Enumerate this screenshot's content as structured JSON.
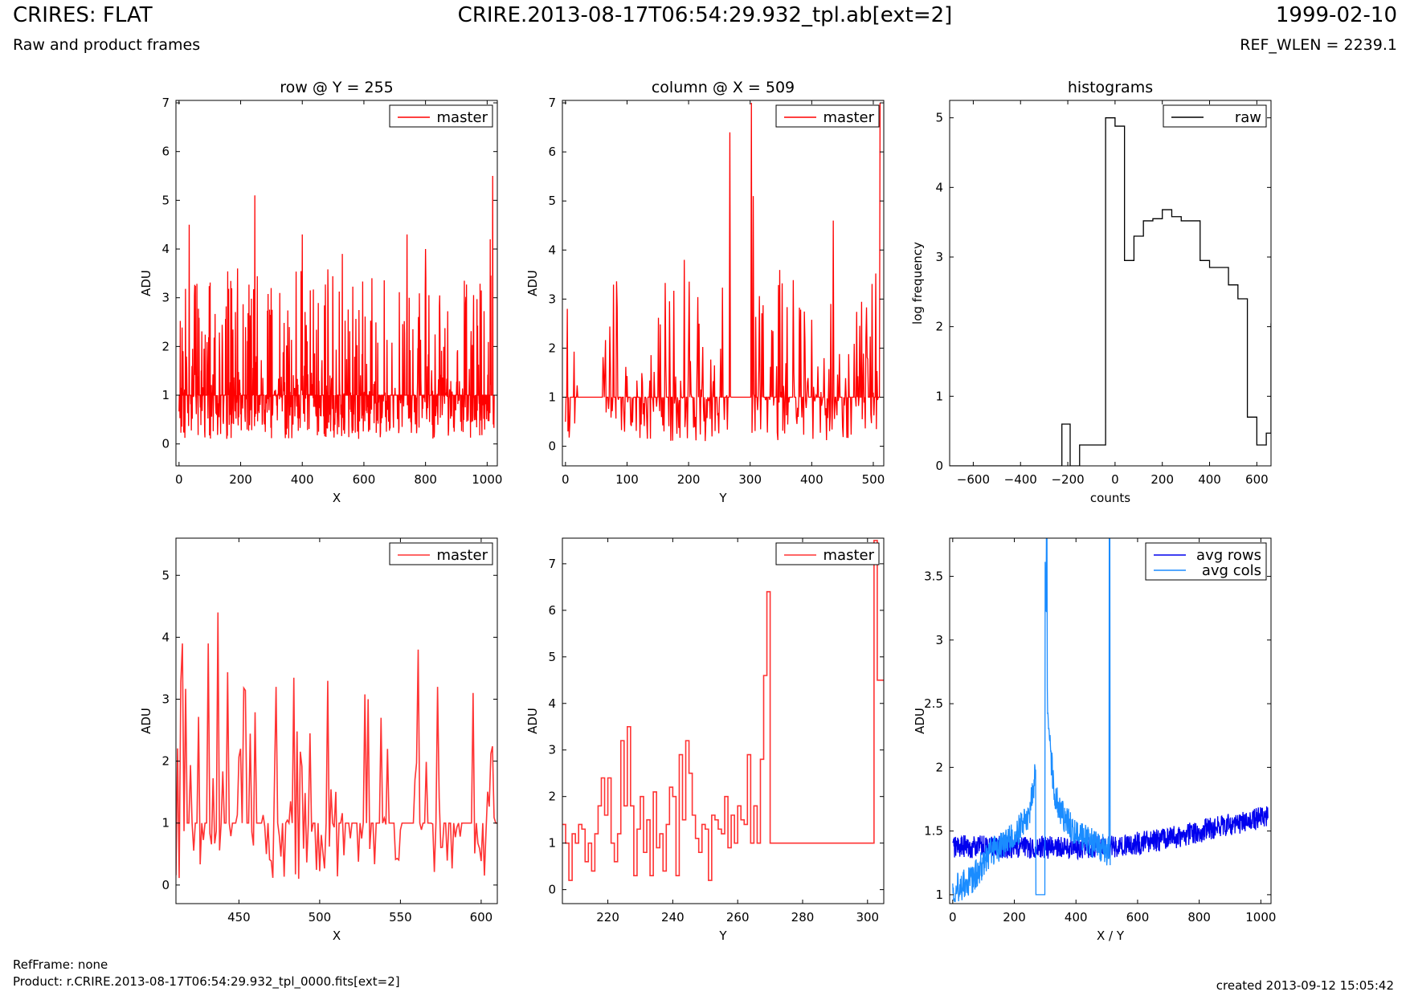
{
  "header": {
    "title": "CRIRES: FLAT",
    "file": "CRIRE.2013-08-17T06:54:29.932_tpl.ab[ext=2]",
    "date": "1999-02-10",
    "subtitle": "Raw and product frames",
    "ref_wlen": "REF_WLEN = 2239.1"
  },
  "footer": {
    "ref_frame": "RefFrame: none",
    "product": "Product: r.CRIRE.2013-08-17T06:54:29.932_tpl_0000.fits[ext=2]",
    "created": "created 2013-09-12 15:05:42"
  },
  "chart_data": [
    {
      "type": "line",
      "title": "row @ Y = 255",
      "xlabel": "X",
      "ylabel": "ADU",
      "xlim": [
        -10,
        1033
      ],
      "ylim": [
        -0.45,
        7.05
      ],
      "xticks": [
        0,
        200,
        400,
        600,
        800,
        1000
      ],
      "yticks": [
        0,
        1,
        2,
        3,
        4,
        5,
        6,
        7
      ],
      "legend": "top-right",
      "grid": false,
      "series": [
        {
          "name": "master",
          "color": "#ff0000",
          "x_range": [
            0,
            1023
          ],
          "baseline": 1.0,
          "min": 0.1,
          "max": 5.5,
          "peaks": [
            [
              33,
              4.5
            ],
            [
              190,
              3.6
            ],
            [
              246,
              5.1
            ],
            [
              400,
              4.3
            ],
            [
              530,
              3.9
            ],
            [
              740,
              4.3
            ],
            [
              800,
              4.0
            ],
            [
              1010,
              4.2
            ],
            [
              1018,
              5.5
            ]
          ]
        }
      ]
    },
    {
      "type": "line",
      "title": "column @ X = 509",
      "xlabel": "Y",
      "ylabel": "ADU",
      "xlim": [
        -5,
        517
      ],
      "ylim": [
        -0.4,
        7.05
      ],
      "xticks": [
        0,
        100,
        200,
        300,
        400,
        500
      ],
      "yticks": [
        0,
        1,
        2,
        3,
        4,
        5,
        6,
        7
      ],
      "legend": "top-right",
      "grid": false,
      "series": [
        {
          "name": "master",
          "color": "#ff0000",
          "x_range": [
            0,
            511
          ],
          "baseline": 1.0,
          "min": 0.1,
          "max": 7.0,
          "flat_segments": [
            [
              20,
              60,
              1.0
            ],
            [
              269,
              302,
              1.0
            ]
          ],
          "peaks": [
            [
              3,
              2.8
            ],
            [
              193,
              3.8
            ],
            [
              267,
              6.4
            ],
            [
              302,
              7.0
            ],
            [
              305,
              5.1
            ],
            [
              435,
              4.6
            ],
            [
              511,
              7.0
            ]
          ]
        }
      ]
    },
    {
      "type": "line",
      "title": "histograms",
      "xlabel": "counts",
      "ylabel": "log frequency",
      "xlim": [
        -700,
        660
      ],
      "ylim": [
        0,
        5.25
      ],
      "xticks": [
        -600,
        -400,
        -200,
        0,
        200,
        400,
        600
      ],
      "yticks": [
        0,
        1,
        2,
        3,
        4,
        5
      ],
      "legend": "top-right",
      "grid": false,
      "series": [
        {
          "name": "raw",
          "color": "#000000",
          "step": true,
          "x": [
            -700,
            -225,
            -190,
            -150,
            -75,
            -40,
            0,
            40,
            80,
            120,
            160,
            200,
            240,
            280,
            320,
            360,
            400,
            440,
            480,
            520,
            560,
            600,
            640,
            660
          ],
          "y": [
            0,
            0.6,
            0,
            0.3,
            0.3,
            5.0,
            4.88,
            2.95,
            3.3,
            3.52,
            3.55,
            3.68,
            3.58,
            3.52,
            3.52,
            2.95,
            2.85,
            2.85,
            2.6,
            2.4,
            0.7,
            0.3,
            0.47,
            2.05
          ]
        }
      ]
    },
    {
      "type": "line",
      "title": "",
      "xlabel": "X",
      "ylabel": "ADU",
      "xlim": [
        411,
        610
      ],
      "ylim": [
        -0.3,
        5.6
      ],
      "xticks": [
        450,
        500,
        550,
        600
      ],
      "yticks": [
        0,
        1,
        2,
        3,
        4,
        5
      ],
      "legend": "top-right",
      "grid": false,
      "series": [
        {
          "name": "master",
          "color": "#ff3333",
          "x_range": [
            411,
            610
          ],
          "baseline": 1.0,
          "min": 0.1,
          "max": 4.4,
          "peaks": [
            [
              415,
              3.9
            ],
            [
              431,
              3.9
            ],
            [
              437,
              4.4
            ],
            [
              473,
              3.2
            ],
            [
              530,
              3.0
            ],
            [
              561,
              3.8
            ],
            [
              573,
              3.2
            ],
            [
              595,
              3.1
            ]
          ]
        }
      ]
    },
    {
      "type": "line",
      "title": "",
      "xlabel": "Y",
      "ylabel": "ADU",
      "xlim": [
        206,
        305
      ],
      "ylim": [
        -0.3,
        7.55
      ],
      "xticks": [
        220,
        240,
        260,
        280,
        300
      ],
      "yticks": [
        0,
        1,
        2,
        3,
        4,
        5,
        6,
        7
      ],
      "legend": "top-right",
      "grid": false,
      "series": [
        {
          "name": "master",
          "color": "#ff3333",
          "step": true,
          "x": [
            206,
            207,
            208,
            209,
            210,
            211,
            212,
            213,
            214,
            215,
            216,
            217,
            218,
            219,
            220,
            221,
            222,
            223,
            224,
            225,
            226,
            227,
            228,
            229,
            230,
            231,
            232,
            233,
            234,
            235,
            236,
            237,
            238,
            239,
            240,
            241,
            242,
            243,
            244,
            245,
            246,
            247,
            248,
            249,
            250,
            251,
            252,
            253,
            254,
            255,
            256,
            257,
            258,
            259,
            260,
            261,
            262,
            263,
            264,
            265,
            266,
            267,
            268,
            269,
            270,
            280,
            290,
            300,
            302,
            303,
            304,
            305
          ],
          "y": [
            1.4,
            1.0,
            0.2,
            1.2,
            1.0,
            1.4,
            1.3,
            0.6,
            1.0,
            0.4,
            1.2,
            1.8,
            2.4,
            1.6,
            2.4,
            1.0,
            0.6,
            1.2,
            3.2,
            1.8,
            3.5,
            1.8,
            0.3,
            1.3,
            2.0,
            0.8,
            1.5,
            0.3,
            2.1,
            0.9,
            1.2,
            0.4,
            1.4,
            2.2,
            2.0,
            0.3,
            2.9,
            1.5,
            3.2,
            2.5,
            1.6,
            1.1,
            0.8,
            1.4,
            1.3,
            0.2,
            1.6,
            1.5,
            1.3,
            1.2,
            2.0,
            0.9,
            1.6,
            1.0,
            1.8,
            1.5,
            1.4,
            2.9,
            1.0,
            1.8,
            1.0,
            2.8,
            4.6,
            6.4,
            1.0,
            1.0,
            1.0,
            1.0,
            7.5,
            4.5,
            4.5,
            4.5
          ]
        }
      ]
    },
    {
      "type": "line",
      "title": "",
      "xlabel": "X / Y",
      "ylabel": "ADU",
      "xlim": [
        -10,
        1033
      ],
      "ylim": [
        0.93,
        3.8
      ],
      "xticks": [
        0,
        200,
        400,
        600,
        800,
        1000
      ],
      "yticks": [
        1.0,
        1.5,
        2.0,
        2.5,
        3.0,
        3.5
      ],
      "legend": "top-right",
      "grid": false,
      "series": [
        {
          "name": "avg rows",
          "color": "#0000ee",
          "x_range": [
            0,
            1023
          ],
          "trend": [
            [
              0,
              1.38
            ],
            [
              200,
              1.37
            ],
            [
              500,
              1.37
            ],
            [
              700,
              1.44
            ],
            [
              1023,
              1.62
            ]
          ],
          "noise": 0.09
        },
        {
          "name": "avg cols",
          "color": "#1a8cff",
          "x_range": [
            0,
            511
          ],
          "trend": [
            [
              0,
              1.05
            ],
            [
              60,
              1.1
            ],
            [
              120,
              1.32
            ],
            [
              200,
              1.45
            ],
            [
              250,
              1.65
            ],
            [
              270,
              2.0
            ],
            [
              280,
              2.8
            ],
            [
              290,
              2.3
            ],
            [
              300,
              3.5
            ],
            [
              310,
              2.3
            ],
            [
              330,
              1.8
            ],
            [
              360,
              1.6
            ],
            [
              420,
              1.45
            ],
            [
              500,
              1.35
            ],
            [
              511,
              1.3
            ]
          ],
          "noise": 0.12,
          "flat_segments": [
            [
              270,
              299,
              1.0
            ]
          ],
          "spikes": [
            [
              305,
              3.8
            ],
            [
              509,
              3.8
            ]
          ]
        }
      ]
    }
  ]
}
